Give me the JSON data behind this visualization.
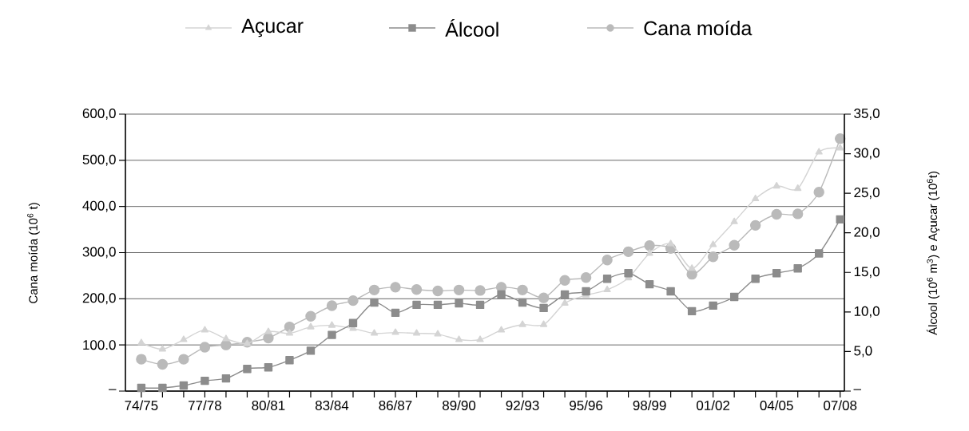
{
  "chart_data": {
    "type": "line",
    "categories": [
      "74/75",
      null,
      null,
      "77/78",
      null,
      null,
      "80/81",
      null,
      null,
      "83/84",
      null,
      null,
      "86/87",
      null,
      null,
      "89/90",
      null,
      null,
      "92/93",
      null,
      null,
      "95/96",
      null,
      null,
      "98/99",
      null,
      null,
      "01/02",
      null,
      null,
      "04/05",
      null,
      null,
      "07/08"
    ],
    "series": [
      {
        "name": "Açucar",
        "color": "#d4d4d4",
        "marker": "triangle",
        "axis": "y2",
        "values": [
          6.1,
          5.3,
          6.5,
          7.7,
          6.6,
          6.0,
          7.5,
          7.3,
          8.1,
          8.3,
          7.9,
          7.3,
          7.4,
          7.3,
          7.2,
          6.5,
          6.5,
          7.7,
          8.4,
          8.4,
          11.1,
          12.1,
          12.8,
          14.3,
          17.4,
          18.6,
          15.5,
          18.5,
          21.4,
          24.3,
          25.9,
          25.6,
          30.2,
          30.7
        ]
      },
      {
        "name": "Álcool",
        "color": "#8c8c8c",
        "marker": "square",
        "axis": "y2",
        "values": [
          0.4,
          0.4,
          0.7,
          1.3,
          1.6,
          2.8,
          3.0,
          3.9,
          5.1,
          7.1,
          8.6,
          11.2,
          9.9,
          10.9,
          10.9,
          11.1,
          10.9,
          12.2,
          11.2,
          10.5,
          12.2,
          12.6,
          14.2,
          14.9,
          13.5,
          12.6,
          10.1,
          10.8,
          11.9,
          14.2,
          14.9,
          15.5,
          17.4,
          21.7
        ]
      },
      {
        "name": "Cana moída",
        "color": "#bababa",
        "marker": "circle",
        "axis": "y",
        "values": [
          69,
          58,
          69,
          95,
          100,
          106,
          115,
          139,
          162,
          185,
          196,
          219,
          225,
          220,
          217,
          219,
          218,
          225,
          219,
          202,
          240,
          246,
          284,
          302,
          315,
          309,
          253,
          291,
          316,
          359,
          383,
          384,
          431,
          547
        ]
      }
    ],
    "ylabel": "Cana moída (10$^{6}$ t)",
    "y2label": "Álcool (10$^{6}$ m$^{3}$) e Açucar (10$^{6}$t)",
    "ylim": [
      0,
      600
    ],
    "yticks": [
      {
        "value": 0,
        "label": "–"
      },
      {
        "value": 100,
        "label": "100.0"
      },
      {
        "value": 200,
        "label": "200,0"
      },
      {
        "value": 300,
        "label": "300,0"
      },
      {
        "value": 400,
        "label": "400,0"
      },
      {
        "value": 500,
        "label": "500,0"
      },
      {
        "value": 600,
        "label": "600,0"
      }
    ],
    "y2lim": [
      0,
      35
    ],
    "y2ticks": [
      {
        "value": 0,
        "label": "–"
      },
      {
        "value": 5,
        "label": "5,0"
      },
      {
        "value": 10,
        "label": "10,0"
      },
      {
        "value": 15,
        "label": "15,0"
      },
      {
        "value": 20,
        "label": "20,0"
      },
      {
        "value": 25,
        "label": "25,0"
      },
      {
        "value": 30,
        "label": "30,0"
      },
      {
        "value": 35,
        "label": "35,0"
      }
    ],
    "grid": "y",
    "legend": "top"
  }
}
